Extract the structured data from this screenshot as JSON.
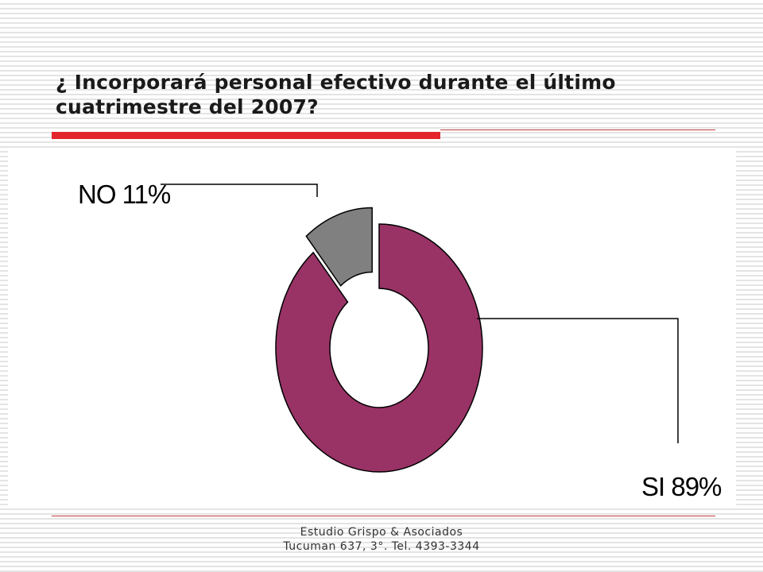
{
  "title": "¿ Incorporará personal efectivo durante el último cuatrimestre del 2007?",
  "footer": {
    "line1": "Estudio Grispo & Asociados",
    "line2": "Tucuman 637, 3°. Tel. 4393-3344"
  },
  "colors": {
    "accent_red": "#e3262d",
    "si_slice": "#993366",
    "no_slice": "#808080"
  },
  "chart_data": {
    "type": "pie",
    "title": "¿ Incorporará personal efectivo durante el último cuatrimestre del 2007?",
    "style": "doughnut-exploded",
    "slices": [
      {
        "category": "NO",
        "value": 11,
        "label": "NO 11%",
        "color": "#808080"
      },
      {
        "category": "SI",
        "value": 89,
        "label": "SI 89%",
        "color": "#993366"
      }
    ]
  }
}
